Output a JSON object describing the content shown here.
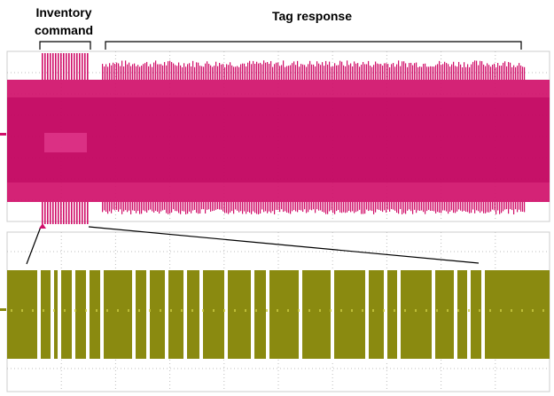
{
  "annotations": {
    "inventory_command": [
      "Inventory",
      "command"
    ],
    "tag_response": "Tag response"
  }
}
